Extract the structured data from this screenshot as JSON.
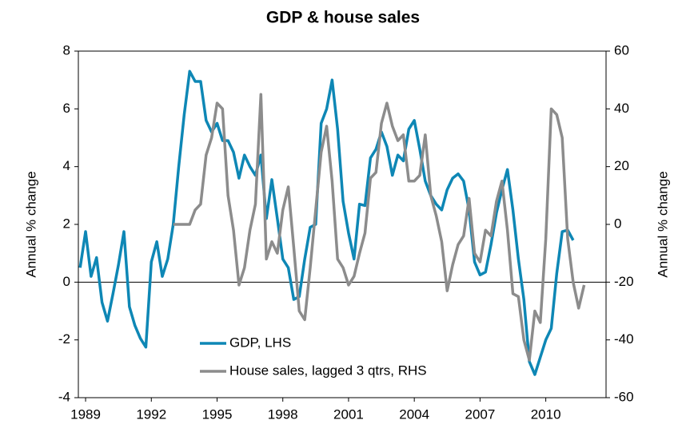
{
  "chart_data": {
    "type": "line",
    "title": "GDP & house sales",
    "y_label": "Annual % change",
    "y2_label": "Annual % change",
    "x": [
      1988.75,
      1989,
      1989.25,
      1989.5,
      1989.75,
      1990,
      1990.25,
      1990.5,
      1990.75,
      1991,
      1991.25,
      1991.5,
      1991.75,
      1992,
      1992.25,
      1992.5,
      1992.75,
      1993,
      1993.25,
      1993.5,
      1993.75,
      1994,
      1994.25,
      1994.5,
      1994.75,
      1995,
      1995.25,
      1995.5,
      1995.75,
      1996,
      1996.25,
      1996.5,
      1996.75,
      1997,
      1997.25,
      1997.5,
      1997.75,
      1998,
      1998.25,
      1998.5,
      1998.75,
      1999,
      1999.25,
      1999.5,
      1999.75,
      2000,
      2000.25,
      2000.5,
      2000.75,
      2001,
      2001.25,
      2001.5,
      2001.75,
      2002,
      2002.25,
      2002.5,
      2002.75,
      2003,
      2003.25,
      2003.5,
      2003.75,
      2004,
      2004.25,
      2004.5,
      2004.75,
      2005,
      2005.25,
      2005.5,
      2005.75,
      2006,
      2006.25,
      2006.5,
      2006.75,
      2007,
      2007.25,
      2007.5,
      2007.75,
      2008,
      2008.25,
      2008.5,
      2008.75,
      2009,
      2009.25,
      2009.5,
      2009.75,
      2010,
      2010.25,
      2010.5,
      2010.75,
      2011,
      2011.25,
      2011.5,
      2011.75
    ],
    "series": [
      {
        "name": "GDP, LHS",
        "color": "#0e87b5",
        "axis": "y",
        "values": [
          0.5,
          1.75,
          0.2,
          0.85,
          -0.7,
          -1.35,
          -0.4,
          0.6,
          1.75,
          -0.85,
          -1.5,
          -1.95,
          -2.25,
          0.7,
          1.4,
          0.2,
          0.8,
          2.0,
          4.0,
          5.8,
          7.3,
          6.95,
          6.95,
          5.6,
          5.2,
          5.5,
          4.9,
          4.9,
          4.5,
          3.6,
          4.4,
          4.0,
          3.7,
          4.4,
          2.2,
          3.55,
          2.2,
          0.8,
          0.5,
          -0.6,
          -0.5,
          0.8,
          1.9,
          2.0,
          5.5,
          6.0,
          7.0,
          5.3,
          2.8,
          1.7,
          0.8,
          2.7,
          2.65,
          4.3,
          4.6,
          5.2,
          4.7,
          3.7,
          4.4,
          4.2,
          5.3,
          5.6,
          4.6,
          3.5,
          3.0,
          2.7,
          2.5,
          3.2,
          3.6,
          3.75,
          3.5,
          2.5,
          0.7,
          0.25,
          0.35,
          1.3,
          2.4,
          3.2,
          3.9,
          2.5,
          0.8,
          -0.6,
          -2.75,
          -3.2,
          -2.6,
          -2.0,
          -1.6,
          0.3,
          1.75,
          1.8,
          1.45,
          null,
          null
        ]
      },
      {
        "name": "House sales, lagged 3 qtrs, RHS",
        "color": "#8c8c8c",
        "axis": "y2",
        "values": [
          null,
          null,
          null,
          null,
          null,
          null,
          null,
          null,
          null,
          null,
          null,
          null,
          null,
          null,
          null,
          null,
          null,
          0,
          0,
          0,
          0,
          5,
          7,
          24,
          30,
          42,
          40,
          10,
          -2,
          -21,
          -15,
          -2,
          7,
          45,
          -12,
          -6,
          -10,
          5,
          13,
          -8,
          -30,
          -33,
          -15,
          5,
          25,
          34,
          15,
          -12,
          -15,
          -21,
          -18,
          -10,
          -3,
          16,
          18,
          35,
          42,
          34,
          29,
          31,
          15,
          15,
          17,
          31,
          10,
          3,
          -6,
          -23,
          -14,
          -7,
          -4,
          9,
          -10,
          -13,
          -2,
          -4,
          8,
          15,
          -2,
          -24,
          -25,
          -40,
          -47,
          -30,
          -34,
          -5,
          40,
          38,
          30,
          -5,
          -20,
          -29,
          -21
        ]
      }
    ],
    "xlim": [
      1988.67,
      2012.75
    ],
    "xticks": [
      1989,
      1992,
      1995,
      1998,
      2001,
      2004,
      2007,
      2010
    ],
    "ylim": [
      -4,
      8
    ],
    "yticks": [
      -4,
      -2,
      0,
      2,
      4,
      6,
      8
    ],
    "y2lim": [
      -60,
      60
    ],
    "y2ticks": [
      -60,
      -40,
      -20,
      0,
      20,
      40,
      60
    ],
    "zero_line": true
  }
}
